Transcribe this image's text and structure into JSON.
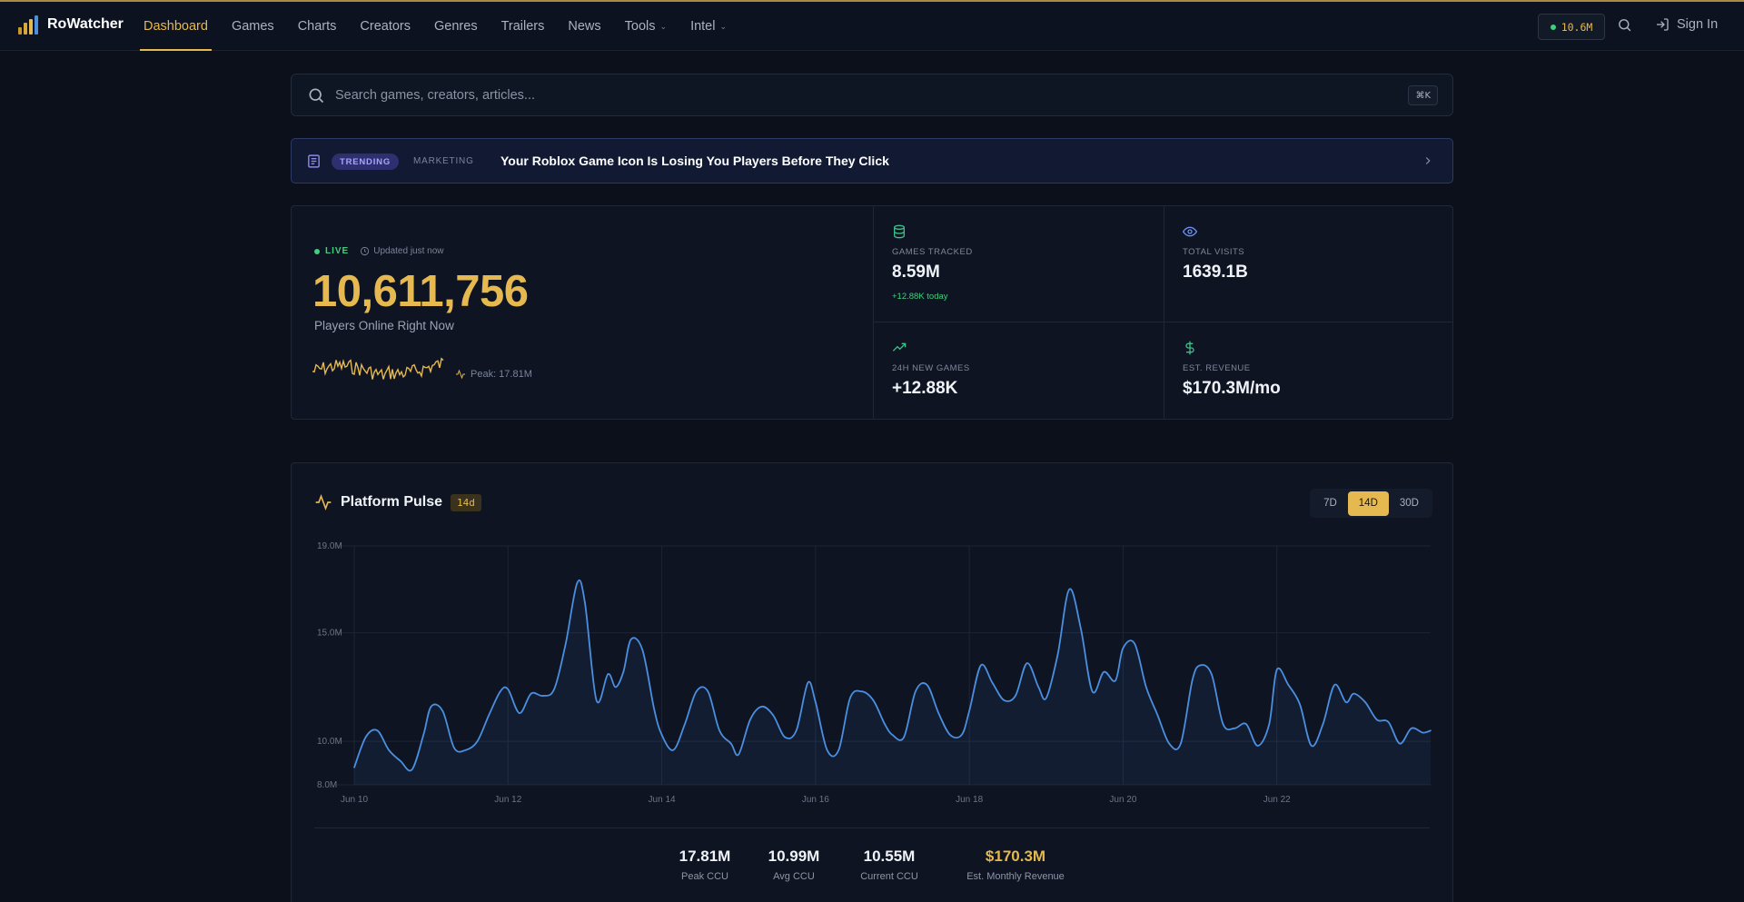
{
  "app": {
    "name": "RoWatcher"
  },
  "nav": {
    "items": [
      {
        "label": "Dashboard",
        "active": true
      },
      {
        "label": "Games"
      },
      {
        "label": "Charts"
      },
      {
        "label": "Creators"
      },
      {
        "label": "Genres"
      },
      {
        "label": "Trailers"
      },
      {
        "label": "News"
      },
      {
        "label": "Tools",
        "dropdown": true
      },
      {
        "label": "Intel",
        "dropdown": true
      }
    ],
    "ccu_pill": "10.6M",
    "sign_in": "Sign In"
  },
  "search": {
    "placeholder": "Search games, creators, articles...",
    "shortcut": "⌘K"
  },
  "banner": {
    "badge": "TRENDING",
    "category": "MARKETING",
    "title": "Your Roblox Game Icon Is Losing You Players Before They Click"
  },
  "hero": {
    "live_label": "LIVE",
    "updated": "Updated just now",
    "players_online": "10,611,756",
    "players_label": "Players Online Right Now",
    "peak": "Peak: 17.81M"
  },
  "stats": [
    {
      "icon": "database-icon",
      "label": "GAMES TRACKED",
      "value": "8.59M",
      "sub": "+12.88K today"
    },
    {
      "icon": "eye-icon",
      "label": "TOTAL VISITS",
      "value": "1639.1B"
    },
    {
      "icon": "trending-up-icon",
      "label": "24H NEW GAMES",
      "value": "+12.88K"
    },
    {
      "icon": "dollar-icon",
      "label": "EST. REVENUE",
      "value": "$170.3M/mo"
    }
  ],
  "pulse": {
    "title": "Platform Pulse",
    "badge": "14d",
    "ranges": [
      {
        "label": "7D"
      },
      {
        "label": "14D",
        "active": true
      },
      {
        "label": "30D"
      }
    ],
    "summary": [
      {
        "value": "17.81M",
        "label": "Peak CCU"
      },
      {
        "value": "10.99M",
        "label": "Avg CCU"
      },
      {
        "value": "10.55M",
        "label": "Current CCU"
      },
      {
        "value": "$170.3M",
        "label": "Est. Monthly Revenue",
        "accent": true
      }
    ]
  },
  "colors": {
    "accent": "#e5b94f",
    "live_green": "#3fd07d",
    "line_blue": "#4a8fe0",
    "trending_purple": "#a7a4ff"
  },
  "chart_data": {
    "type": "line",
    "title": "Platform Pulse",
    "xlabel": "",
    "ylabel": "",
    "x_ticks": [
      "Jun 10",
      "Jun 12",
      "Jun 14",
      "Jun 16",
      "Jun 18",
      "Jun 20",
      "Jun 22"
    ],
    "y_ticks": [
      "8.0M",
      "10.0M",
      "15.0M",
      "19.0M"
    ],
    "ylim": [
      8.0,
      19.0
    ],
    "xlim_days": [
      10,
      24
    ],
    "grid": true,
    "series": [
      {
        "x": [
          10.0,
          10.15,
          10.3,
          10.45,
          10.6,
          10.75,
          10.9,
          11.0,
          11.15,
          11.3,
          11.45,
          11.6,
          11.75,
          11.9,
          12.0,
          12.15,
          12.3,
          12.45,
          12.6,
          12.75,
          12.9,
          13.0,
          13.15,
          13.3,
          13.4,
          13.5,
          13.6,
          13.75,
          13.9,
          14.0,
          14.15,
          14.3,
          14.45,
          14.6,
          14.75,
          14.9,
          15.0,
          15.15,
          15.3,
          15.45,
          15.6,
          15.75,
          15.9,
          16.0,
          16.15,
          16.3,
          16.45,
          16.6,
          16.75,
          16.9,
          17.0,
          17.15,
          17.3,
          17.45,
          17.6,
          17.75,
          17.9,
          18.0,
          18.15,
          18.3,
          18.45,
          18.6,
          18.75,
          18.9,
          19.0,
          19.15,
          19.3,
          19.45,
          19.6,
          19.75,
          19.9,
          20.0,
          20.15,
          20.3,
          20.45,
          20.6,
          20.75,
          20.9,
          21.0,
          21.15,
          21.3,
          21.45,
          21.6,
          21.75,
          21.9,
          22.0,
          22.15,
          22.3,
          22.45,
          22.6,
          22.75,
          22.9,
          23.0,
          23.15,
          23.3,
          23.45,
          23.6,
          23.75,
          23.9,
          24.0
        ],
        "y": [
          8.8,
          10.2,
          10.5,
          9.6,
          9.1,
          8.7,
          10.3,
          11.6,
          11.4,
          9.7,
          9.6,
          10.0,
          11.2,
          12.3,
          12.4,
          11.3,
          12.2,
          12.1,
          12.4,
          14.5,
          17.3,
          16.4,
          11.9,
          13.1,
          12.5,
          13.2,
          14.7,
          14.2,
          11.5,
          10.3,
          9.6,
          10.8,
          12.3,
          12.3,
          10.5,
          9.9,
          9.4,
          11.0,
          11.6,
          11.2,
          10.2,
          10.5,
          12.7,
          11.8,
          9.6,
          9.6,
          12.0,
          12.3,
          11.9,
          10.8,
          10.3,
          10.2,
          12.3,
          12.6,
          11.3,
          10.3,
          10.3,
          11.4,
          13.5,
          12.7,
          11.9,
          12.1,
          13.6,
          12.5,
          12.0,
          14.0,
          17.0,
          15.2,
          12.3,
          13.2,
          12.8,
          14.3,
          14.5,
          12.5,
          11.2,
          9.9,
          9.9,
          12.8,
          13.5,
          13.1,
          10.8,
          10.6,
          10.8,
          9.8,
          10.8,
          13.3,
          12.6,
          11.7,
          9.8,
          10.8,
          12.6,
          11.8,
          12.2,
          11.8,
          11.0,
          10.9,
          9.9,
          10.6,
          10.4,
          10.5
        ]
      }
    ]
  }
}
